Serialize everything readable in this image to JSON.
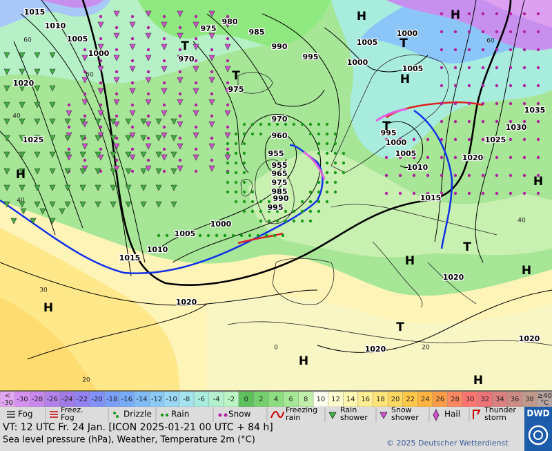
{
  "map": {
    "isobar_labels": [
      "1015",
      "1010",
      "1005",
      "1000",
      "975",
      "980",
      "985",
      "990",
      "995",
      "1000",
      "1005",
      "1000",
      "1005",
      "970",
      "975",
      "970",
      "960",
      "955",
      "955",
      "965",
      "975",
      "985",
      "990",
      "995",
      "1020",
      "1025",
      "1035",
      "1030",
      "1025",
      "1020",
      "1010",
      "1005",
      "1000",
      "995",
      "1015",
      "1000",
      "1005",
      "1010",
      "1015",
      "1020",
      "1020",
      "1020",
      "1020"
    ],
    "temperature_labels": [
      "60",
      "50",
      "40",
      "40",
      "30",
      "20",
      "60",
      "40",
      "20",
      "0"
    ],
    "pressure_centers": [
      "H",
      "H",
      "T",
      "T",
      "T",
      "T",
      "H",
      "T",
      "T",
      "H",
      "H",
      "H",
      "H",
      "H",
      "H",
      "H"
    ]
  },
  "color_scale": [
    {
      "lines": [
        "<",
        "-30"
      ],
      "color": "#e2a6f2"
    },
    {
      "lines": [
        "-30"
      ],
      "color": "#d690f0"
    },
    {
      "lines": [
        "-28"
      ],
      "color": "#c888ec"
    },
    {
      "lines": [
        "-26"
      ],
      "color": "#b480ea"
    },
    {
      "lines": [
        "-24"
      ],
      "color": "#a27ae8"
    },
    {
      "lines": [
        "-22"
      ],
      "color": "#9282f4"
    },
    {
      "lines": [
        "-20"
      ],
      "color": "#8290fc"
    },
    {
      "lines": [
        "-18"
      ],
      "color": "#7aa0fc"
    },
    {
      "lines": [
        "-16"
      ],
      "color": "#78acf8"
    },
    {
      "lines": [
        "-14"
      ],
      "color": "#80bcf8"
    },
    {
      "lines": [
        "-12"
      ],
      "color": "#8ccaf8"
    },
    {
      "lines": [
        "-10"
      ],
      "color": "#98d8f4"
    },
    {
      "lines": [
        "-8"
      ],
      "color": "#a4e4ee"
    },
    {
      "lines": [
        "-6"
      ],
      "color": "#a8ecde"
    },
    {
      "lines": [
        "-4"
      ],
      "color": "#b2f0d0"
    },
    {
      "lines": [
        "-2"
      ],
      "color": "#bcf4c4"
    },
    {
      "lines": [
        "0"
      ],
      "color": "#5cc05c"
    },
    {
      "lines": [
        "2"
      ],
      "color": "#74d06c"
    },
    {
      "lines": [
        "4"
      ],
      "color": "#8cdc80"
    },
    {
      "lines": [
        "6"
      ],
      "color": "#a4e896"
    },
    {
      "lines": [
        "8"
      ],
      "color": "#c0f0a8"
    },
    {
      "lines": [
        "10"
      ],
      "color": "#fafff0"
    },
    {
      "lines": [
        "12"
      ],
      "color": "#fffcd0"
    },
    {
      "lines": [
        "14"
      ],
      "color": "#fff6b0"
    },
    {
      "lines": [
        "16"
      ],
      "color": "#ffee94"
    },
    {
      "lines": [
        "18"
      ],
      "color": "#ffe47a"
    },
    {
      "lines": [
        "20"
      ],
      "color": "#ffd860"
    },
    {
      "lines": [
        "22"
      ],
      "color": "#ffc848"
    },
    {
      "lines": [
        "24"
      ],
      "color": "#ffb440"
    },
    {
      "lines": [
        "26"
      ],
      "color": "#ff9c48"
    },
    {
      "lines": [
        "28"
      ],
      "color": "#ff8860"
    },
    {
      "lines": [
        "30"
      ],
      "color": "#ff7470"
    },
    {
      "lines": [
        "32"
      ],
      "color": "#ec7478"
    },
    {
      "lines": [
        "34"
      ],
      "color": "#dc8080"
    },
    {
      "lines": [
        "36"
      ],
      "color": "#cc8c84"
    },
    {
      "lines": [
        "38"
      ],
      "color": "#c0988c"
    },
    {
      "lines": [
        "≥40",
        "°C"
      ],
      "color": "#b8a4a0"
    }
  ],
  "legend": [
    {
      "lines": [
        "Fog"
      ]
    },
    {
      "lines": [
        "Freez.",
        "Fog"
      ]
    },
    {
      "lines": [
        "Drizzle"
      ]
    },
    {
      "lines": [
        "Rain"
      ]
    },
    {
      "lines": [
        "Snow"
      ]
    },
    {
      "lines": [
        "Freezing",
        "rain"
      ]
    },
    {
      "lines": [
        "Rain",
        "shower"
      ]
    },
    {
      "lines": [
        "Snow",
        "shower"
      ]
    },
    {
      "lines": [
        "Hail"
      ]
    },
    {
      "lines": [
        "Thunder",
        "storm"
      ]
    }
  ],
  "footer": {
    "valid_time": "VT: 12 UTC Fr.  24 Jan. [ICON 2025-01-21  00 UTC + 84 h]",
    "description": "Sea level pressure (hPa), Weather, Temperature 2m (°C)",
    "copyright": "© 2025 Deutscher Wetterdienst",
    "logo": "DWD"
  }
}
